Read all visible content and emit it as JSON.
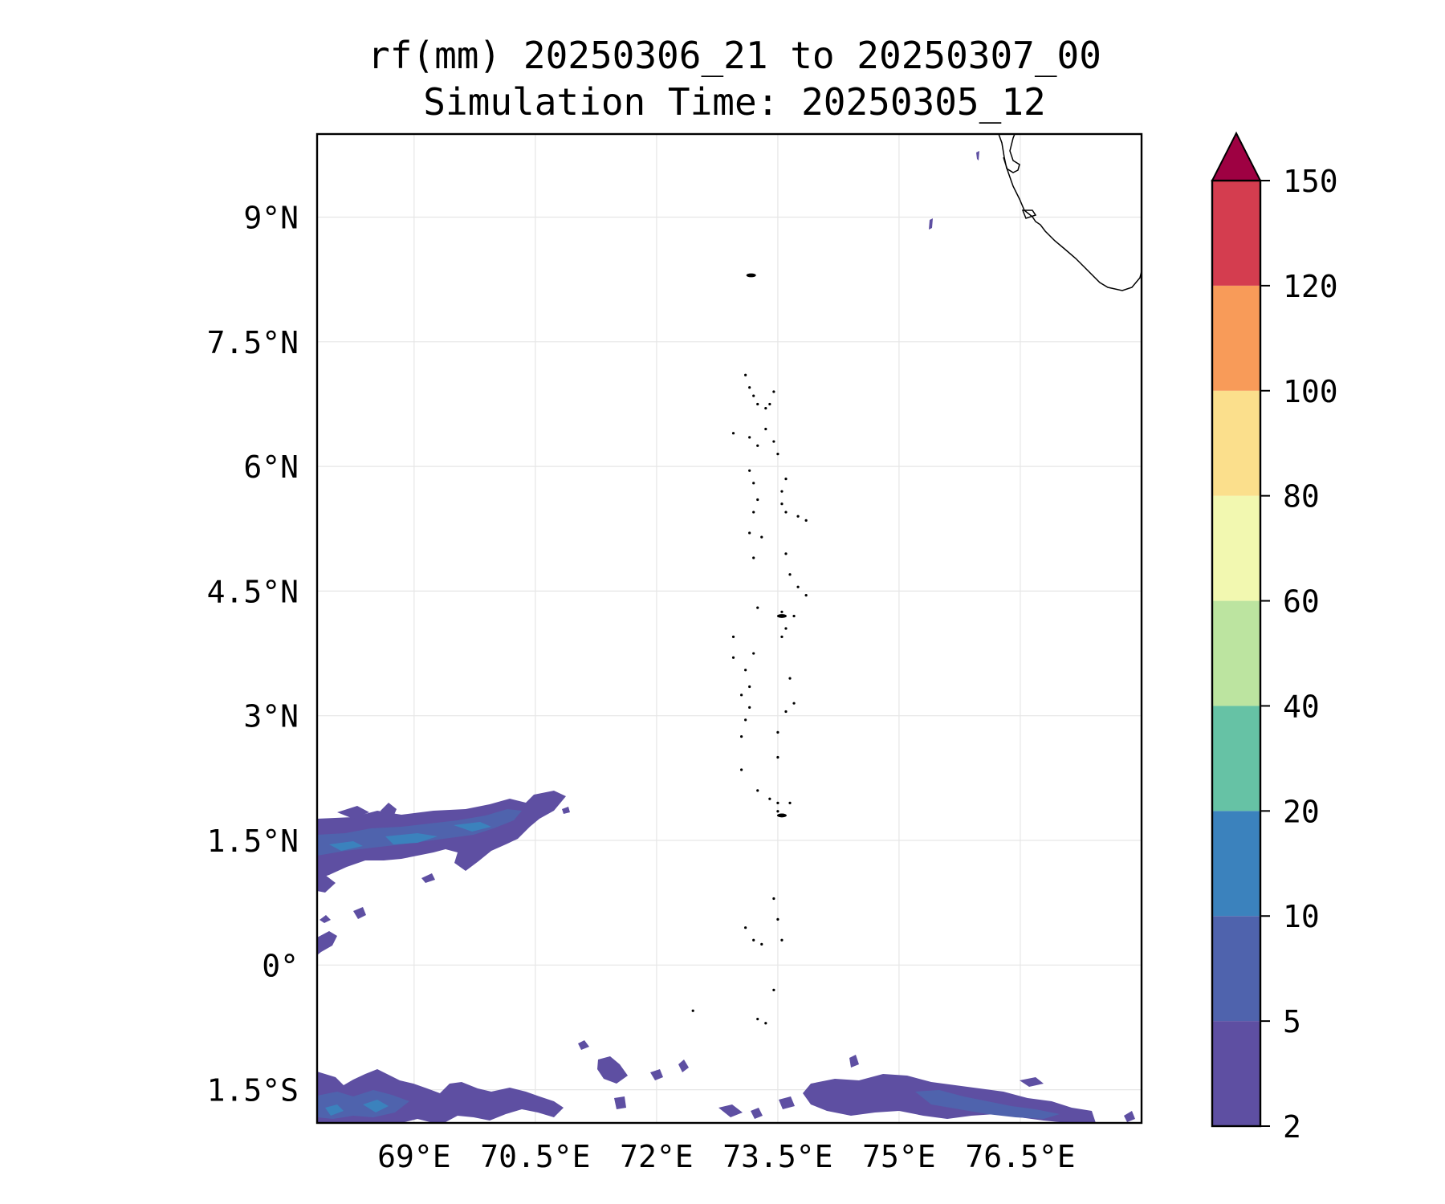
{
  "title": {
    "line1": "rf(mm) 20250306_21 to 20250307_00",
    "line2": "Simulation Time: 20250305_12"
  },
  "map": {
    "lon_range": [
      67.8,
      78.0
    ],
    "lat_range": [
      -1.9,
      10.0
    ],
    "lon_ticks": [
      {
        "value": 69.0,
        "label": "69°E"
      },
      {
        "value": 70.5,
        "label": "70.5°E"
      },
      {
        "value": 72.0,
        "label": "72°E"
      },
      {
        "value": 73.5,
        "label": "73.5°E"
      },
      {
        "value": 75.0,
        "label": "75°E"
      },
      {
        "value": 76.5,
        "label": "76.5°E"
      }
    ],
    "lat_ticks": [
      {
        "value": 9.0,
        "label": "9°N"
      },
      {
        "value": 7.5,
        "label": "7.5°N"
      },
      {
        "value": 6.0,
        "label": "6°N"
      },
      {
        "value": 4.5,
        "label": "4.5°N"
      },
      {
        "value": 3.0,
        "label": "3°N"
      },
      {
        "value": 1.5,
        "label": "1.5°N"
      },
      {
        "value": 0.0,
        "label": "0°"
      },
      {
        "value": -1.5,
        "label": "1.5°S"
      }
    ],
    "gridlines": true,
    "coastline_color": "#000000"
  },
  "colorbar": {
    "levels": [
      2,
      5,
      10,
      20,
      40,
      60,
      80,
      100,
      120,
      150
    ],
    "colors": [
      "#5e4fa2",
      "#4f63ad",
      "#3b82bd",
      "#66c2a5",
      "#bce4a0",
      "#f2f8b0",
      "#fbdf8c",
      "#f89b59",
      "#d43d4f"
    ],
    "extend_color": "#9e0142",
    "extend": "max"
  },
  "chart_data": {
    "type": "heatmap",
    "title": "rf(mm) 20250306_21 to 20250307_00 / Simulation Time: 20250305_12",
    "variable": "rf",
    "units": "mm",
    "xlabel": "",
    "ylabel": "",
    "xlim": [
      67.8,
      78.0
    ],
    "ylim": [
      -1.9,
      10.0
    ],
    "grid": true,
    "colorbar_levels": [
      2,
      5,
      10,
      20,
      40,
      60,
      80,
      100,
      120,
      150
    ],
    "rain_regions": [
      {
        "name": "",
        "lon_range": [
          67.8,
          71.2
        ],
        "lat_range": [
          0.1,
          1.95
        ],
        "max_level_mm": 10
      },
      {
        "name": "",
        "lon_range": [
          67.8,
          77.3
        ],
        "lat_range": [
          -1.9,
          -0.9
        ],
        "max_level_mm": 20
      },
      {
        "name": "",
        "lon": 75.5,
        "lat": 9.0,
        "max_level_mm": 5
      },
      {
        "name": "",
        "lon": 76.0,
        "lat": 9.7,
        "max_level_mm": 5
      }
    ]
  }
}
